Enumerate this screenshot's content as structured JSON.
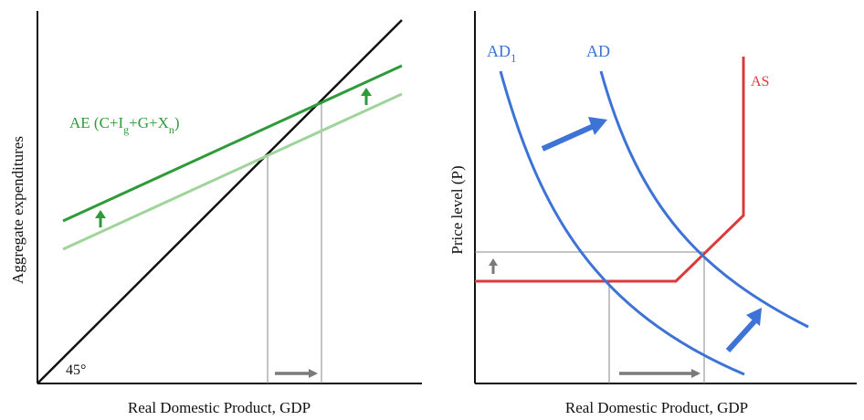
{
  "left_panel": {
    "x_axis_label": "Real Domestic Product, GDP",
    "y_axis_label": "Aggregate expenditures",
    "ae_label": {
      "prefix": "AE (C+I",
      "sub_g": "g",
      "middle": "+G+X",
      "sub_n": "n",
      "suffix": ")"
    },
    "angle_label": "45°"
  },
  "right_panel": {
    "x_axis_label": "Real Domestic Product, GDP",
    "y_axis_label": "Price level (P)",
    "ad1_label": "AD",
    "ad1_sub": "1",
    "ad_label": "AD",
    "as_label": "AS"
  },
  "colors": {
    "axis": "#111111",
    "ae_new": "#2e9a3a",
    "ae_old": "#9fd49a",
    "arrow_green": "#2e9a3a",
    "ad": "#3d72d6",
    "as": "#d93b3b",
    "guide": "#777777",
    "arrow_gray": "#7a7a7a",
    "arrow_blue": "#3d72d6"
  }
}
